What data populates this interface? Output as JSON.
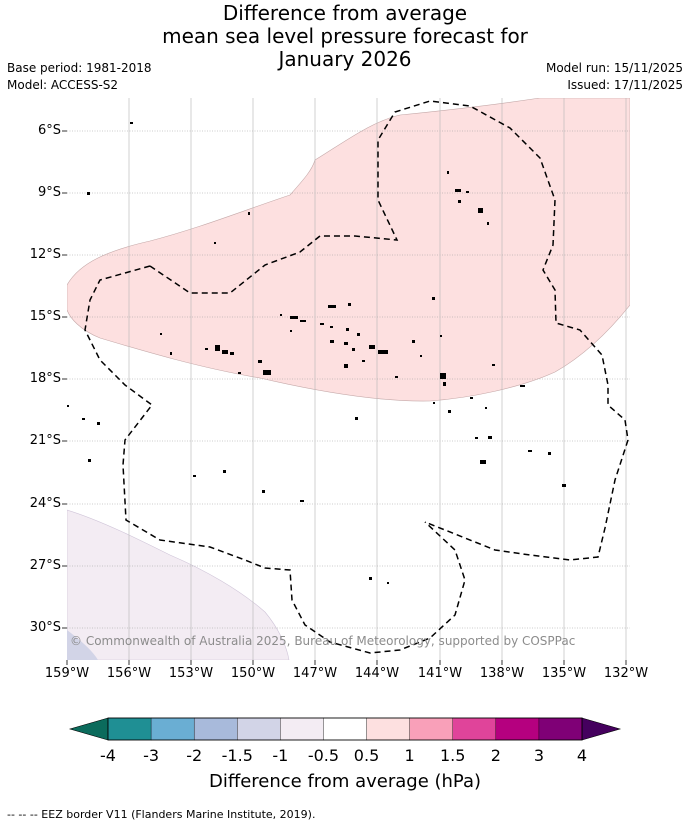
{
  "title": {
    "line1": "Difference from average",
    "line2": "mean sea level pressure forecast for",
    "line3": "January 2026"
  },
  "meta": {
    "base_period": "Base period: 1981-2018",
    "model": "Model: ACCESS-S2",
    "model_run": "Model run: 15/11/2025",
    "issued": "Issued: 17/11/2025"
  },
  "map": {
    "lat_labels": [
      "6°S",
      "9°S",
      "12°S",
      "15°S",
      "18°S",
      "21°S",
      "24°S",
      "27°S",
      "30°S"
    ],
    "lon_labels": [
      "159°W",
      "156°W",
      "153°W",
      "150°W",
      "147°W",
      "144°W",
      "141°W",
      "138°W",
      "135°W",
      "132°W"
    ],
    "copyright": "© Commonwealth of Australia 2025, Bureau of Meteorology, supported by COSPPac"
  },
  "colorbar": {
    "labels": [
      "-4",
      "-3",
      "-2",
      "-1.5",
      "-1",
      "-0.5",
      "0.5",
      "1",
      "1.5",
      "2",
      "3",
      "4"
    ],
    "colors": [
      "#1f8f94",
      "#6aaed3",
      "#a8badb",
      "#d2d4e7",
      "#f3ecf3",
      "#ffffff",
      "#fde0e0",
      "#f9a0b9",
      "#e0449a",
      "#b5007f",
      "#7f0076"
    ],
    "under_color": "#0b6b5c",
    "over_color": "#45005e",
    "title": "Difference from average (hPa)"
  },
  "footnote": "--  --  -- EEZ border V11 (Flanders Marine Institute, 2019)."
}
